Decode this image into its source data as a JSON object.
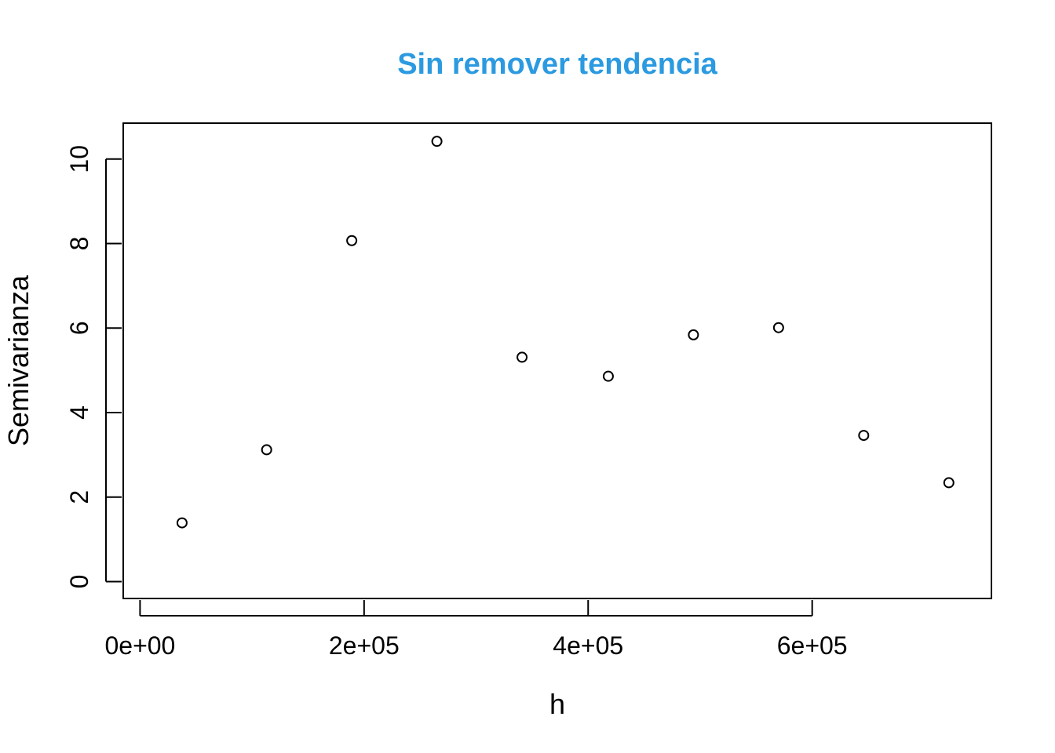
{
  "chart_data": {
    "type": "scatter",
    "title": "Sin remover tendencia",
    "title_color": "#2b9ae0",
    "xlabel": "h",
    "ylabel": "Semivarianza",
    "xlim": [
      -15000,
      760000
    ],
    "ylim": [
      -0.4,
      10.85
    ],
    "x_ticks": [
      0,
      200000,
      400000,
      600000
    ],
    "x_tick_labels": [
      "0e+00",
      "2e+05",
      "4e+05",
      "6e+05"
    ],
    "y_ticks": [
      0,
      2,
      4,
      6,
      8,
      10
    ],
    "y_tick_labels": [
      "0",
      "2",
      "4",
      "6",
      "8",
      "10"
    ],
    "points": [
      {
        "x": 37500,
        "y": 1.39
      },
      {
        "x": 113000,
        "y": 3.12
      },
      {
        "x": 189000,
        "y": 8.07
      },
      {
        "x": 265000,
        "y": 10.42
      },
      {
        "x": 341000,
        "y": 5.31
      },
      {
        "x": 418000,
        "y": 4.86
      },
      {
        "x": 494000,
        "y": 5.84
      },
      {
        "x": 570000,
        "y": 6.01
      },
      {
        "x": 646000,
        "y": 3.46
      },
      {
        "x": 722000,
        "y": 2.34
      }
    ],
    "marker": "open-circle",
    "grid": false,
    "legend": "none"
  }
}
